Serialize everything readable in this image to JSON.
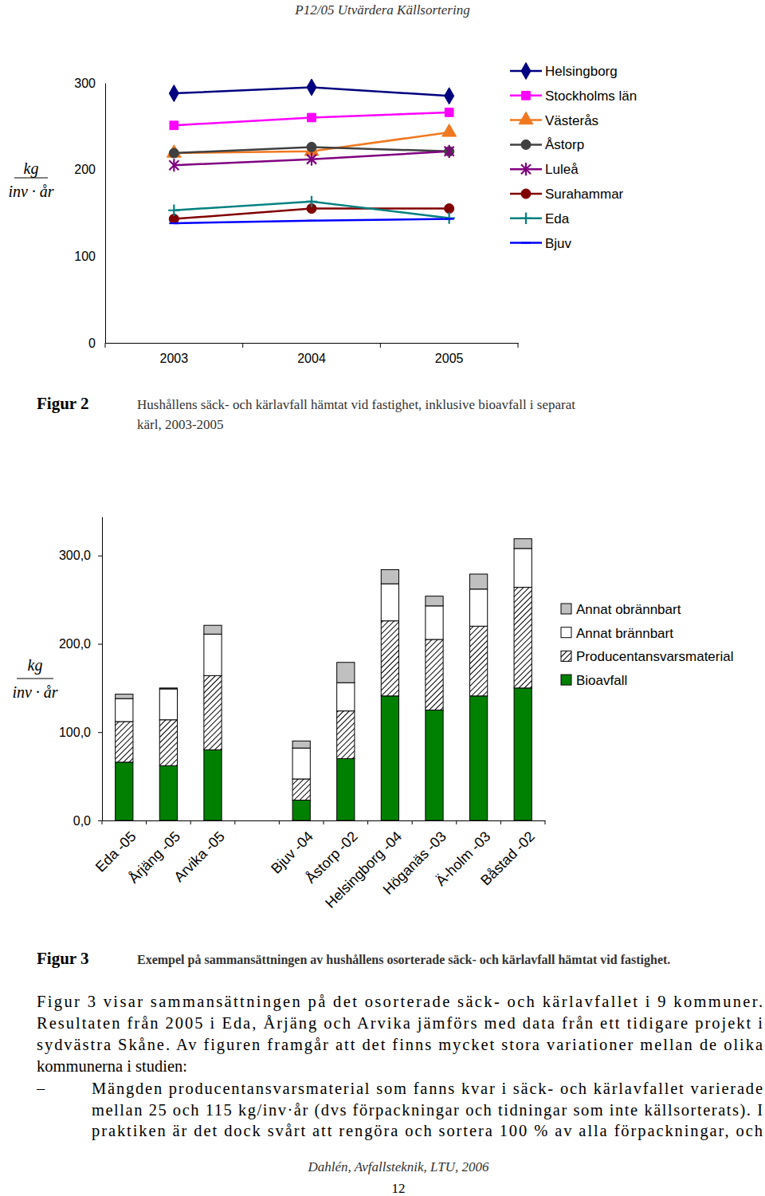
{
  "header": {
    "title": "P12/05 Utvärdera Källsortering"
  },
  "chart_data": [
    {
      "type": "line",
      "y_label": [
        "kg",
        "inv · år"
      ],
      "categories": [
        "2003",
        "2004",
        "2005"
      ],
      "ylim": [
        0,
        300
      ],
      "yticks": [
        0,
        100,
        200,
        300
      ],
      "legend": "right",
      "series": [
        {
          "name": "Helsingborg",
          "color": "#000080",
          "marker": "diamond",
          "values": [
            288,
            295,
            285
          ]
        },
        {
          "name": "Stockholms län",
          "color": "#ff00ff",
          "marker": "square",
          "values": [
            251,
            260,
            266
          ]
        },
        {
          "name": "Västerås",
          "color": "#f07820",
          "marker": "triangle",
          "values": [
            219,
            221,
            243
          ]
        },
        {
          "name": "Åstorp",
          "color": "#404040",
          "marker": "circle",
          "values": [
            219,
            226,
            221
          ]
        },
        {
          "name": "Luleå",
          "color": "#800080",
          "marker": "star",
          "values": [
            205,
            212,
            221
          ]
        },
        {
          "name": "Surahammar",
          "color": "#800000",
          "marker": "circle",
          "values": [
            143,
            155,
            155
          ]
        },
        {
          "name": "Eda",
          "color": "#008080",
          "marker": "cross",
          "values": [
            153,
            163,
            144
          ]
        },
        {
          "name": "Bjuv",
          "color": "#0000ff",
          "marker": "dash",
          "values": [
            138,
            141,
            143
          ]
        }
      ]
    },
    {
      "type": "bar",
      "stacked": true,
      "y_label": [
        "kg",
        "inv · år"
      ],
      "categories": [
        "Eda -05",
        "Årjäng -05",
        "Arvika -05",
        null,
        "Bjuv -04",
        "Åstorp -02",
        "Helsingborg -04",
        "Höganäs -03",
        "Ä-holm -03",
        "Båstad -02"
      ],
      "ylim": [
        0,
        344
      ],
      "yticks": [
        {
          "value": 0,
          "label": "0,0"
        },
        {
          "value": 100,
          "label": "100,0"
        },
        {
          "value": 200,
          "label": "200,0"
        },
        {
          "value": 300,
          "label": "300,0"
        }
      ],
      "legend": "right",
      "series": [
        {
          "name": "Bioavfall",
          "color": "#008000",
          "values": [
            66,
            62,
            80,
            null,
            23,
            70,
            141,
            125,
            141,
            150
          ]
        },
        {
          "name": "Producentansvarsmaterial",
          "color": "#000000",
          "line_style": "hatch",
          "values": [
            46,
            52,
            84,
            null,
            24,
            54,
            85,
            80,
            79,
            114
          ]
        },
        {
          "name": "Annat brännbart",
          "color": "#ffffff",
          "values": [
            26,
            35,
            47,
            null,
            35,
            32,
            42,
            38,
            42,
            44
          ]
        },
        {
          "name": "Annat obrännbart",
          "color": "#c0c0c0",
          "values": [
            5,
            1,
            10,
            null,
            8,
            23,
            16,
            11,
            17,
            11
          ]
        }
      ]
    }
  ],
  "figures": [
    {
      "label": "Figur 2",
      "caption_lines": [
        "Hushållens säck- och kärlavfall hämtat vid fastighet, inklusive bioavfall i separat",
        "kärl, 2003-2005"
      ]
    },
    {
      "label": "Figur 3",
      "caption_lines": [
        "Exempel på sammansättningen av hushållens osorterade säck- och kärlavfall hämtat vid fastighet."
      ]
    }
  ],
  "body": {
    "paragraph": [
      "Figur 3 visar sammansättningen på det osorterade säck- och kärlavfallet i 9 kommuner.",
      "Resultaten från 2005 i Eda, Årjäng och Arvika jämförs med data från ett tidigare projekt i",
      "sydvästra Skåne. Av figuren framgår att det finns mycket stora variationer mellan de olika",
      "kommunerna i studien:"
    ],
    "bullets": [
      {
        "symbol": "–",
        "lines": [
          "Mängden producentansvarsmaterial som fanns kvar i säck- och kärlavfallet varierade",
          "mellan 25 och 115 kg/inv·år (dvs förpackningar och tidningar som inte källsorterats). I",
          "praktiken är det dock svårt att rengöra och sortera 100 % av alla förpackningar, och"
        ]
      }
    ]
  },
  "footer": {
    "author": "Dahlén, Avfallsteknik, LTU, 2006",
    "page": "12"
  }
}
